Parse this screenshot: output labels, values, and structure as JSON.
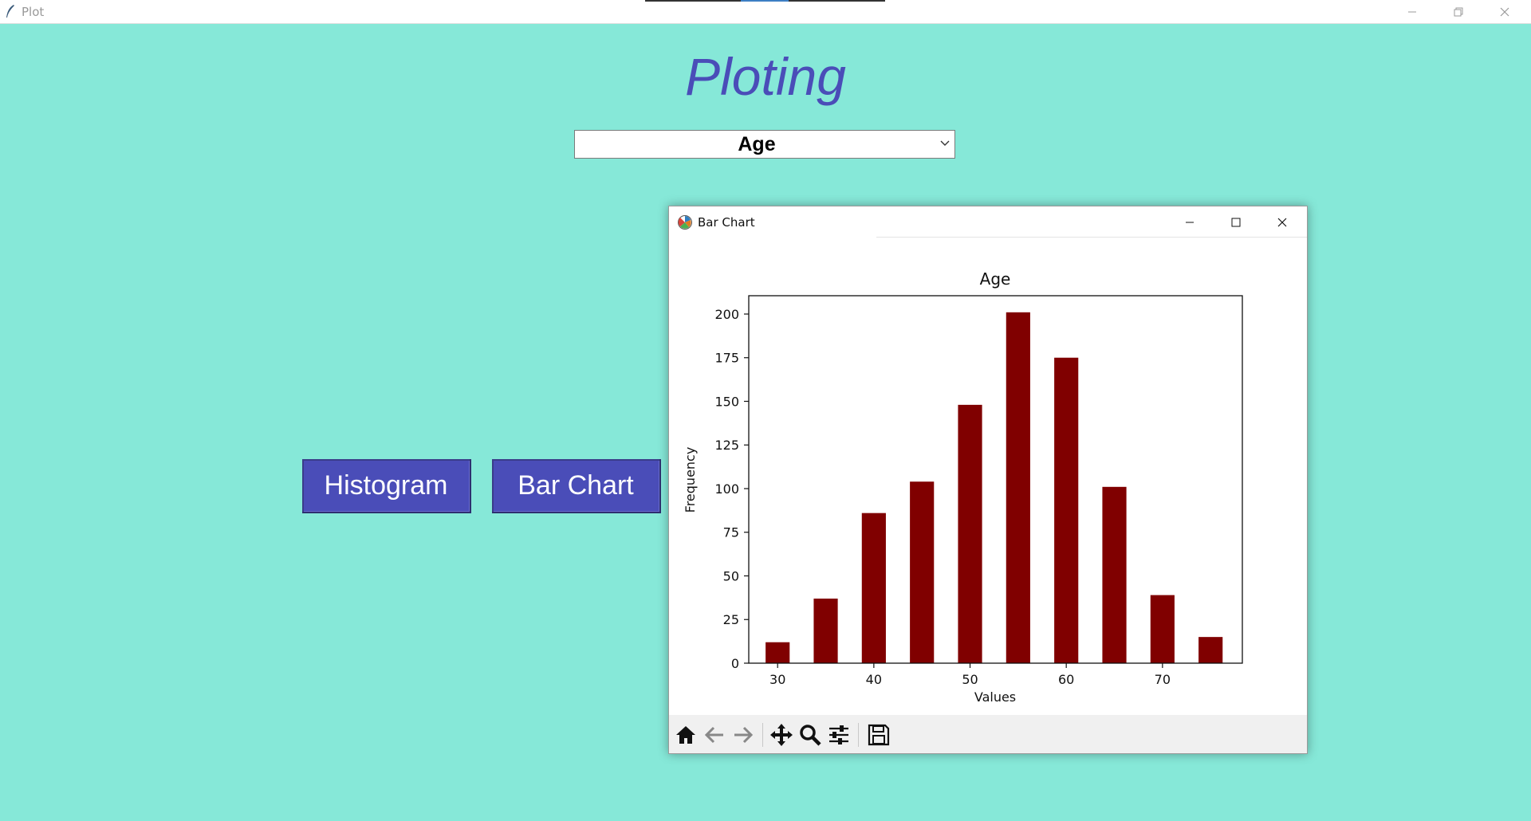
{
  "window": {
    "title": "Plot",
    "controls": [
      "minimize-icon",
      "restore-icon",
      "close-icon"
    ]
  },
  "main": {
    "heading": "Ploting",
    "dropdown": {
      "selected": "Age"
    },
    "buttons": {
      "histogram": "Histogram",
      "bar_chart": "Bar Chart"
    }
  },
  "chart_window": {
    "title": "Bar Chart",
    "controls": [
      "minimize-icon",
      "maximize-icon",
      "close-icon"
    ],
    "toolbar": [
      "home-icon",
      "back-icon",
      "forward-icon",
      "pan-icon",
      "zoom-icon",
      "configure-icon",
      "save-icon"
    ]
  },
  "colors": {
    "background": "#86e8d8",
    "accent": "#4a4db8",
    "bar": "#800000"
  },
  "chart_data": {
    "type": "bar",
    "title": "Age",
    "xlabel": "Values",
    "ylabel": "Frequency",
    "x": [
      30,
      35,
      40,
      45,
      50,
      55,
      60,
      65,
      70,
      75
    ],
    "values": [
      12,
      37,
      86,
      104,
      148,
      201,
      175,
      101,
      39,
      15
    ],
    "bar_width": 2.5,
    "xlim": [
      27,
      78.3
    ],
    "ylim": [
      0,
      210.5
    ],
    "xticks": [
      30,
      40,
      50,
      60,
      70
    ],
    "yticks": [
      0,
      25,
      50,
      75,
      100,
      125,
      150,
      175,
      200
    ],
    "grid": false,
    "legend": null
  }
}
